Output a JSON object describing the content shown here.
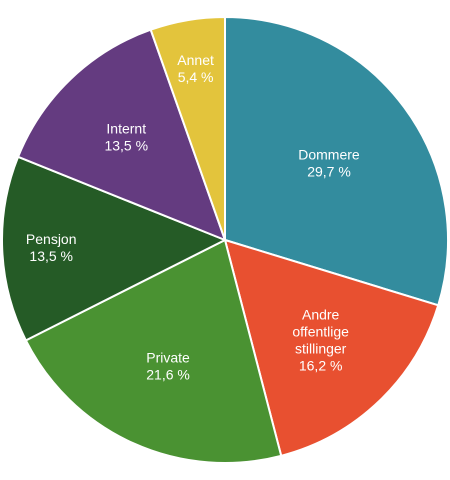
{
  "chart_data": {
    "type": "pie",
    "title": "",
    "start": "12 o'clock",
    "direction": "clockwise",
    "slices": [
      {
        "label": [
          "Dommere"
        ],
        "value_label": "29,7 %",
        "value": 29.7,
        "color": "#338c9e",
        "text_color": "#ffffff"
      },
      {
        "label": [
          "Andre",
          "offentlige",
          "stillinger"
        ],
        "value_label": "16,2 %",
        "value": 16.2,
        "color": "#e85030",
        "text_color": "#ffffff"
      },
      {
        "label": [
          "Private"
        ],
        "value_label": "21,6 %",
        "value": 21.6,
        "color": "#4a9232",
        "text_color": "#ffffff"
      },
      {
        "label": [
          "Pensjon"
        ],
        "value_label": "13,5 %",
        "value": 13.5,
        "color": "#255b26",
        "text_color": "#ffffff"
      },
      {
        "label": [
          "Internt"
        ],
        "value_label": "13,5 %",
        "value": 13.5,
        "color": "#643b80",
        "text_color": "#ffffff"
      },
      {
        "label": [
          "Annet"
        ],
        "value_label": "5,4 %",
        "value": 5.4,
        "color": "#e3c43c",
        "text_color": "#1a1a1a"
      }
    ]
  }
}
